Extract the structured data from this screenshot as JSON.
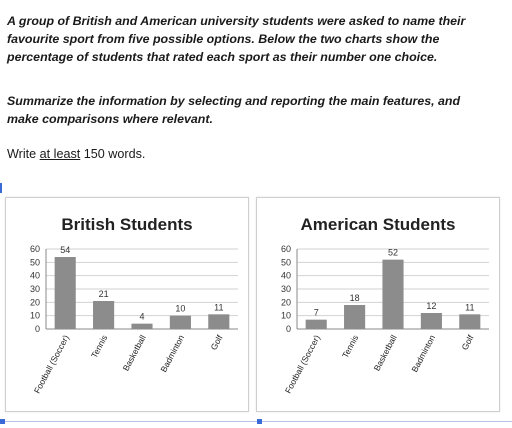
{
  "prompt": {
    "line1": "A group of British and American university students were asked to name their",
    "line2": "favourite sport from five possible options. Below the two charts show the",
    "line3": "percentage of students that rated each sport as their number one choice.",
    "line4": "Summarize the information by selecting and reporting the main features, and",
    "line5": "make comparisons where relevant.",
    "word_pre": "Write ",
    "word_link": "at least",
    "word_post": " 150 words."
  },
  "chart_data": [
    {
      "type": "bar",
      "title": "British Students",
      "categories": [
        "Football (Soccer)",
        "Tennis",
        "Basketball",
        "Badminton",
        "Golf"
      ],
      "values": [
        54,
        21,
        4,
        10,
        11
      ],
      "ylim": [
        0,
        60
      ],
      "yticks": [
        0,
        10,
        20,
        30,
        40,
        50,
        60
      ],
      "grid": true,
      "bar_color": "#8c8c8c"
    },
    {
      "type": "bar",
      "title": "American Students",
      "categories": [
        "Football (Soccer)",
        "Tennis",
        "Basketball",
        "Badminton",
        "Golf"
      ],
      "values": [
        7,
        18,
        52,
        12,
        11
      ],
      "ylim": [
        0,
        60
      ],
      "yticks": [
        0,
        10,
        20,
        30,
        40,
        50,
        60
      ],
      "grid": true,
      "bar_color": "#8c8c8c"
    }
  ]
}
